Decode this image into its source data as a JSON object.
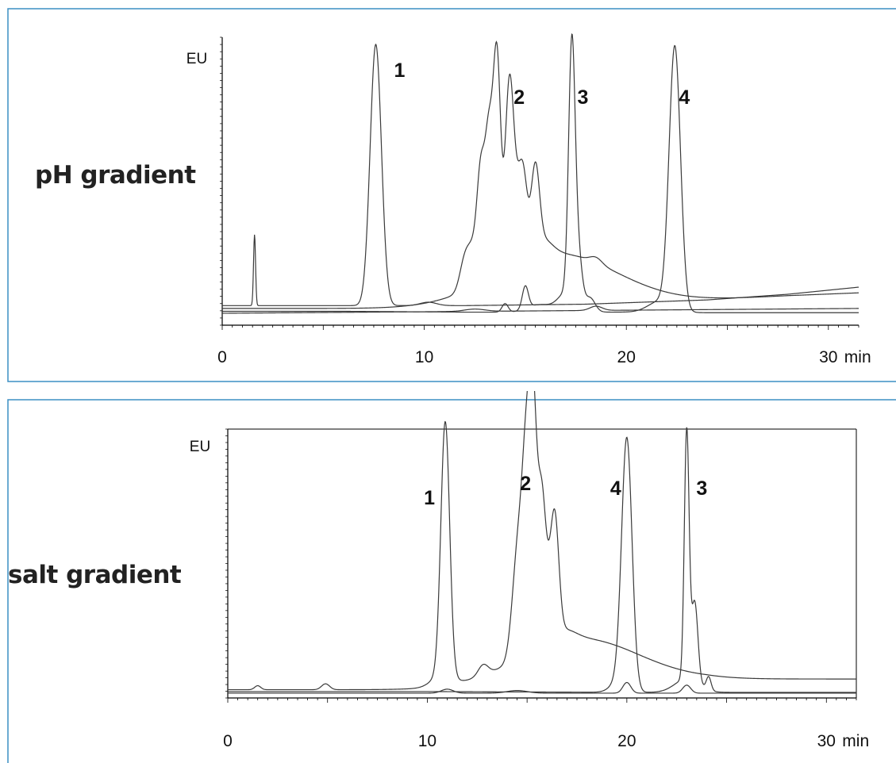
{
  "colors": {
    "frame": "#3b8fc4",
    "trace": "#3a3a3a",
    "axis": "#000000",
    "label": "#222222"
  },
  "chart_data": [
    {
      "type": "line",
      "title": "pH gradient",
      "xlabel": "",
      "ylabel": "EU",
      "x_unit": "min",
      "xlim": [
        0,
        31.5
      ],
      "ylim": [
        0,
        100
      ],
      "x_ticks": [
        "0",
        "10",
        "20",
        "30"
      ],
      "grid": false,
      "peaks": [
        {
          "label": "1",
          "x": 7.6
        },
        {
          "label": "2",
          "x": 13.6
        },
        {
          "label": "3",
          "x": 17.3
        },
        {
          "label": "4",
          "x": 22.4
        }
      ],
      "series": [
        {
          "baseline": [
            [
              0,
              5.5
            ],
            [
              6,
              5.5
            ],
            [
              12,
              5.5
            ],
            [
              18,
              6
            ],
            [
              24,
              7.5
            ],
            [
              28,
              9.5
            ],
            [
              31.5,
              12
            ]
          ],
          "peaks": [
            [
              1.6,
              25,
              0.05
            ],
            [
              7.6,
              92,
              0.28
            ],
            [
              10.2,
              1.2,
              0.4
            ]
          ]
        },
        {
          "baseline": [
            [
              0,
              4.5
            ],
            [
              10,
              4.5
            ],
            [
              16,
              4.5
            ],
            [
              19,
              5.5
            ],
            [
              24,
              7.5
            ],
            [
              28,
              9
            ],
            [
              31.5,
              10
            ]
          ],
          "peaks": [
            [
              12.0,
              10,
              0.25
            ],
            [
              12.5,
              14,
              0.3
            ],
            [
              12.8,
              30,
              0.18
            ],
            [
              13.2,
              50,
              0.2
            ],
            [
              13.6,
              73,
              0.18
            ],
            [
              14.2,
              50,
              0.2
            ],
            [
              14.5,
              25,
              0.35
            ],
            [
              14.9,
              20,
              0.2
            ],
            [
              15.5,
              28,
              0.2
            ],
            [
              15.8,
              6,
              0.5
            ],
            [
              16.5,
              19,
              3.0
            ],
            [
              18.5,
              2,
              0.3
            ]
          ]
        },
        {
          "baseline": [
            [
              0,
              3.5
            ],
            [
              6,
              3.5
            ],
            [
              12,
              3.2
            ],
            [
              20,
              3.2
            ],
            [
              24,
              3
            ],
            [
              31.5,
              3
            ]
          ],
          "peaks": [
            [
              14.0,
              3,
              0.15
            ],
            [
              15.0,
              8,
              0.15
            ],
            [
              15.5,
              2,
              0.5
            ],
            [
              16.5,
              2,
              0.6
            ],
            [
              17.0,
              5,
              0.35
            ],
            [
              17.3,
              87,
              0.16
            ],
            [
              17.6,
              20,
              0.2
            ],
            [
              18.2,
              5,
              0.25
            ],
            [
              22.4,
              92,
              0.28
            ],
            [
              21.7,
              4,
              0.6
            ]
          ]
        },
        {
          "baseline": [
            [
              0,
              2.8
            ],
            [
              31.5,
              4.5
            ]
          ],
          "peaks": [
            [
              12.5,
              0.8,
              0.5
            ],
            [
              18.5,
              1.5,
              0.3
            ]
          ]
        }
      ]
    },
    {
      "type": "line",
      "title": "salt gradient",
      "xlabel": "",
      "ylabel": "EU",
      "x_unit": "min",
      "xlim": [
        0,
        31.5
      ],
      "ylim": [
        0,
        100
      ],
      "x_ticks": [
        "0",
        "10",
        "20",
        "30"
      ],
      "grid": false,
      "peaks": [
        {
          "label": "1",
          "x": 10.9
        },
        {
          "label": "2",
          "x": 15.2
        },
        {
          "label": "4",
          "x": 20.0
        },
        {
          "label": "3",
          "x": 23.0
        }
      ],
      "series": [
        {
          "baseline": [
            [
              0,
              2.5
            ],
            [
              10,
              2.5
            ],
            [
              13,
              3
            ],
            [
              16,
              4
            ],
            [
              20,
              5.5
            ],
            [
              24,
              6.5
            ],
            [
              31.5,
              6.5
            ]
          ],
          "peaks": [
            [
              1.5,
              1.5,
              0.15
            ],
            [
              4.9,
              2.2,
              0.2
            ],
            [
              10.9,
              95,
              0.22
            ],
            [
              10.7,
              4,
              0.5
            ],
            [
              12.8,
              4,
              0.25
            ],
            [
              14.4,
              20,
              0.25
            ],
            [
              14.7,
              35,
              0.25
            ],
            [
              15.0,
              60,
              0.2
            ],
            [
              15.3,
              78,
              0.18
            ],
            [
              15.7,
              45,
              0.2
            ],
            [
              16.0,
              20,
              0.3
            ],
            [
              16.4,
              38,
              0.2
            ],
            [
              16.8,
              4,
              0.6
            ],
            [
              17.5,
              17,
              3.0
            ]
          ]
        },
        {
          "baseline": [
            [
              0,
              1.8
            ],
            [
              10,
              1.8
            ],
            [
              20,
              1.5
            ],
            [
              31.5,
              1.5
            ]
          ],
          "peaks": [
            [
              20.0,
              93,
              0.26
            ],
            [
              19.6,
              4,
              0.4
            ],
            [
              23.0,
              93,
              0.12
            ],
            [
              23.4,
              30,
              0.16
            ],
            [
              23.0,
              5,
              0.6
            ],
            [
              24.1,
              5,
              0.12
            ]
          ]
        },
        {
          "baseline": [
            [
              0,
              1.2
            ],
            [
              31.5,
              1.2
            ]
          ],
          "peaks": [
            [
              11.0,
              1.5,
              0.3
            ],
            [
              20.0,
              4,
              0.2
            ],
            [
              23.0,
              3,
              0.2
            ],
            [
              14.5,
              1,
              0.5
            ]
          ]
        }
      ]
    }
  ]
}
